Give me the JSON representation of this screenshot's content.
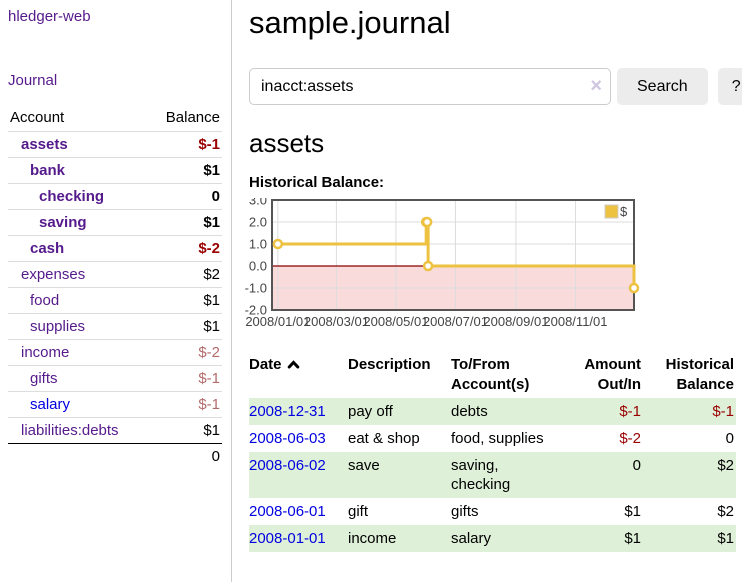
{
  "brand": "hledger-web",
  "nav": {
    "journal": "Journal"
  },
  "colors": {
    "link_visited": "#551a8b",
    "link_new": "#0000e0",
    "negative_strong": "#990000",
    "negative_soft": "#b36b6b",
    "row_shade_green": "#dff0d8",
    "series_gold": "#edc240"
  },
  "sidebar": {
    "account_col": "Account",
    "balance_col": "Balance",
    "rows": [
      {
        "name": "assets",
        "indent": 0,
        "strong": true,
        "link": "visited",
        "balance": "$-1",
        "balance_class": "neg-strong"
      },
      {
        "name": "bank",
        "indent": 1,
        "strong": true,
        "link": "visited",
        "balance": "$1",
        "balance_class": ""
      },
      {
        "name": "checking",
        "indent": 2,
        "strong": true,
        "link": "visited",
        "balance": "0",
        "balance_class": ""
      },
      {
        "name": "saving",
        "indent": 2,
        "strong": true,
        "link": "visited",
        "balance": "$1",
        "balance_class": ""
      },
      {
        "name": "cash",
        "indent": 1,
        "strong": true,
        "link": "visited",
        "balance": "$-2",
        "balance_class": "neg-strong"
      },
      {
        "name": "expenses",
        "indent": 0,
        "strong": false,
        "link": "visited",
        "balance": "$2",
        "balance_class": ""
      },
      {
        "name": "food",
        "indent": 1,
        "strong": false,
        "link": "visited",
        "balance": "$1",
        "balance_class": ""
      },
      {
        "name": "supplies",
        "indent": 1,
        "strong": false,
        "link": "visited",
        "balance": "$1",
        "balance_class": ""
      },
      {
        "name": "income",
        "indent": 0,
        "strong": false,
        "link": "visited",
        "balance": "$-2",
        "balance_class": "neg-soft"
      },
      {
        "name": "gifts",
        "indent": 1,
        "strong": false,
        "link": "visited",
        "balance": "$-1",
        "balance_class": "neg-soft"
      },
      {
        "name": "salary",
        "indent": 1,
        "strong": false,
        "link": "new",
        "balance": "$-1",
        "balance_class": "neg-soft"
      },
      {
        "name": "liabilities:debts",
        "indent": 0,
        "strong": false,
        "link": "visited",
        "balance": "$1",
        "balance_class": ""
      }
    ],
    "total": "0"
  },
  "main": {
    "title": "sample.journal",
    "search": {
      "value": "inacct:assets",
      "clear_icon": "×",
      "search_label": "Search",
      "help_label": "?"
    },
    "account_title": "assets",
    "chart_heading": "Historical Balance:"
  },
  "chart_data": {
    "type": "line",
    "step": true,
    "title": "Historical Balance:",
    "series": [
      {
        "name": "$",
        "color": "#edc240",
        "points": [
          [
            "2008-01-01",
            1
          ],
          [
            "2008-06-01",
            2
          ],
          [
            "2008-06-02",
            2
          ],
          [
            "2008-06-03",
            0
          ],
          [
            "2008-12-31",
            -1
          ]
        ]
      }
    ],
    "x_ticks": [
      {
        "date": "2008-01-01",
        "label": "2008/01/01"
      },
      {
        "date": "2008-03-01",
        "label": "2008/03/01"
      },
      {
        "date": "2008-05-01",
        "label": "2008/05/01"
      },
      {
        "date": "2008-07-01",
        "label": "2008/07/01"
      },
      {
        "date": "2008-09-01",
        "label": "2008/09/01"
      },
      {
        "date": "2008-11-01",
        "label": "2008/11/01"
      }
    ],
    "y_ticks": [
      {
        "v": 3,
        "label": "3.0"
      },
      {
        "v": 2,
        "label": "2.0"
      },
      {
        "v": 1,
        "label": "1.0"
      },
      {
        "v": 0,
        "label": "0.0"
      },
      {
        "v": -1,
        "label": "-1.0"
      },
      {
        "v": -2,
        "label": "-2.0"
      }
    ],
    "ylim": [
      -2,
      3
    ],
    "x_range": [
      "2007-12-26",
      "2008-12-31"
    ],
    "grid": true,
    "legend": {
      "label": "$",
      "position": "top-right"
    },
    "style": {
      "negative_region": "#f9dbdb",
      "zero_line": "#8b0000",
      "grid_line": "#dcdcdc",
      "border": "#545454",
      "tick_text": "#444444"
    }
  },
  "register": {
    "headers": {
      "date": "Date",
      "description": "Description",
      "account": "To/From Account(s)",
      "amount": "Amount Out/In",
      "balance": "Historical Balance"
    },
    "sort": {
      "column": "date",
      "direction": "ascending",
      "icon": "chevron-up"
    },
    "rows": [
      {
        "date": "2008-12-31",
        "description": "pay off",
        "accounts": "debts",
        "amount": "$-1",
        "amount_neg": true,
        "balance": "$-1",
        "balance_neg": true,
        "shade": true
      },
      {
        "date": "2008-06-03",
        "description": "eat & shop",
        "accounts": "food, supplies",
        "amount": "$-2",
        "amount_neg": true,
        "balance": "0",
        "balance_neg": false,
        "shade": false
      },
      {
        "date": "2008-06-02",
        "description": "save",
        "accounts": "saving, checking",
        "amount": "0",
        "amount_neg": false,
        "balance": "$2",
        "balance_neg": false,
        "shade": true
      },
      {
        "date": "2008-06-01",
        "description": "gift",
        "accounts": "gifts",
        "amount": "$1",
        "amount_neg": false,
        "balance": "$2",
        "balance_neg": false,
        "shade": false
      },
      {
        "date": "2008-01-01",
        "description": "income",
        "accounts": "salary",
        "amount": "$1",
        "amount_neg": false,
        "balance": "$1",
        "balance_neg": false,
        "shade": true
      }
    ]
  }
}
